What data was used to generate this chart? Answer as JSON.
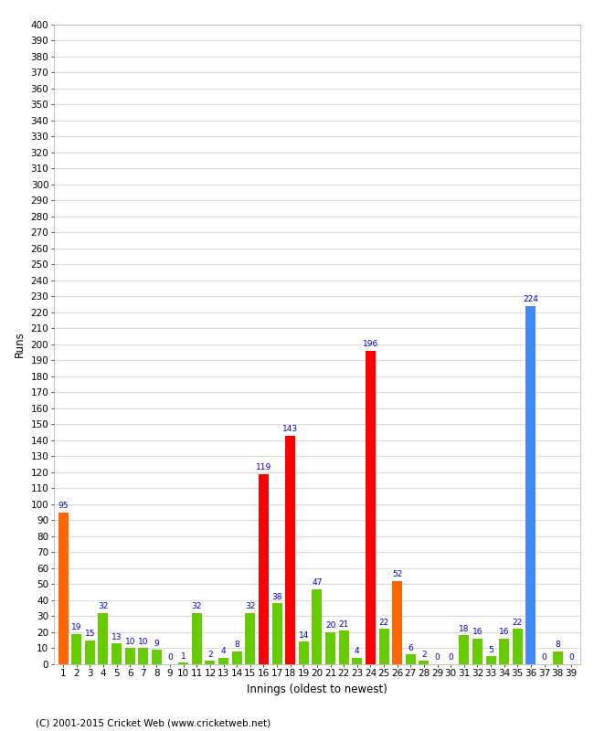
{
  "xlabel": "Innings (oldest to newest)",
  "ylabel": "Runs",
  "footer": "(C) 2001-2015 Cricket Web (www.cricketweb.net)",
  "ylim": [
    0,
    400
  ],
  "innings": [
    1,
    2,
    3,
    4,
    5,
    6,
    7,
    8,
    9,
    10,
    11,
    12,
    13,
    14,
    15,
    16,
    17,
    18,
    19,
    20,
    21,
    22,
    23,
    24,
    25,
    26,
    27,
    28,
    29,
    30,
    31,
    32,
    33,
    34,
    35,
    36,
    37,
    38,
    39
  ],
  "values": [
    95,
    19,
    15,
    32,
    13,
    10,
    10,
    9,
    0,
    1,
    32,
    2,
    4,
    8,
    32,
    119,
    38,
    143,
    14,
    47,
    20,
    21,
    4,
    196,
    22,
    52,
    6,
    2,
    0,
    0,
    18,
    16,
    5,
    16,
    22,
    224,
    0,
    8,
    0
  ],
  "colors": [
    "#ff6600",
    "#66cc00",
    "#66cc00",
    "#66cc00",
    "#66cc00",
    "#66cc00",
    "#66cc00",
    "#66cc00",
    "#66cc00",
    "#66cc00",
    "#66cc00",
    "#66cc00",
    "#66cc00",
    "#66cc00",
    "#66cc00",
    "#ff0000",
    "#66cc00",
    "#ff0000",
    "#66cc00",
    "#66cc00",
    "#66cc00",
    "#66cc00",
    "#66cc00",
    "#ff0000",
    "#66cc00",
    "#ff6600",
    "#66cc00",
    "#66cc00",
    "#66cc00",
    "#66cc00",
    "#66cc00",
    "#66cc00",
    "#66cc00",
    "#66cc00",
    "#66cc00",
    "#4488ff",
    "#66cc00",
    "#66cc00",
    "#66cc00"
  ],
  "bg_color": "#ffffff",
  "plot_bg_color": "#ffffff",
  "grid_color": "#cccccc",
  "label_color": "#0000cc",
  "label_fontsize": 6.5,
  "axis_tick_fontsize": 7.5,
  "bar_width": 0.75
}
